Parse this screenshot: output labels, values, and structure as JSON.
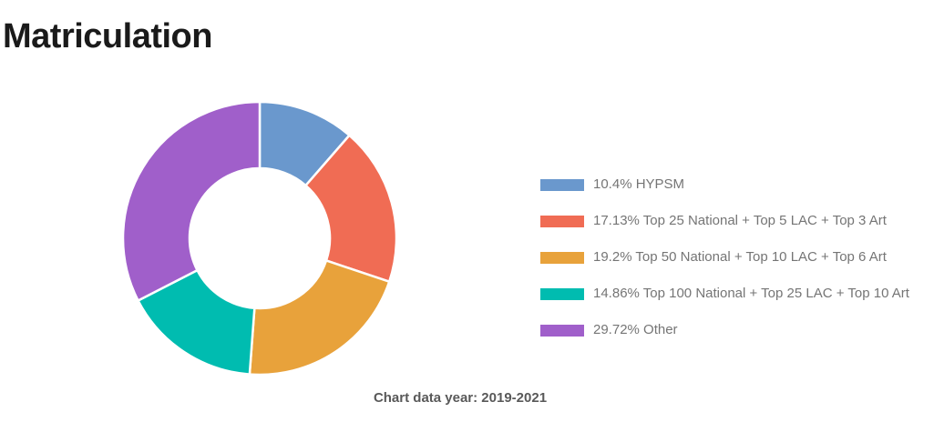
{
  "chart_data": {
    "type": "pie",
    "subtype": "donut",
    "title": "Matriculation",
    "categories": [
      "HYPSM",
      "Top 25 National + Top 5 LAC + Top 3 Art",
      "Top 50 National + Top 10 LAC + Top 6 Art",
      "Top 100 National + Top 25 LAC + Top 10 Art",
      "Other"
    ],
    "values": [
      10.4,
      17.13,
      19.2,
      14.86,
      29.72
    ],
    "unit": "%",
    "colors": [
      "#6a98cd",
      "#f06c54",
      "#e8a23b",
      "#00bcb0",
      "#a05fca"
    ],
    "legend_labels": [
      "10.4% HYPSM",
      "17.13% Top 25 National + Top 5 LAC + Top 3 Art",
      "19.2% Top 50 National + Top 10 LAC + Top 6 Art",
      "14.86% Top 100 National + Top 25 LAC + Top 10 Art",
      "29.72% Other"
    ],
    "legend_position": "right",
    "start_angle_deg": 0,
    "direction": "clockwise",
    "grid": false,
    "footnote": "Chart data year: 2019-2021"
  }
}
